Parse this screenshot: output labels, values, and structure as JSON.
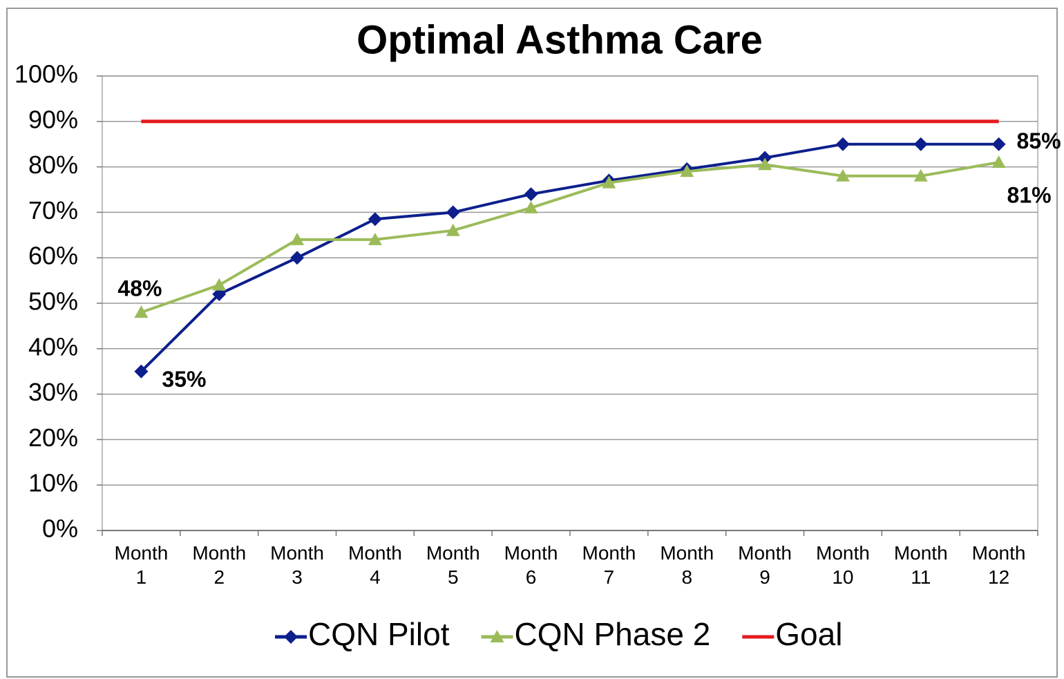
{
  "chart_data": {
    "type": "line",
    "title": "Optimal Asthma Care",
    "categories": [
      "Month 1",
      "Month 2",
      "Month 3",
      "Month 4",
      "Month 5",
      "Month 6",
      "Month 7",
      "Month 8",
      "Month 9",
      "Month 10",
      "Month 11",
      "Month 12"
    ],
    "series": [
      {
        "name": "CQN Pilot",
        "color": "#0d1f8c",
        "marker": "diamond",
        "values": [
          35,
          52,
          60,
          68.5,
          70,
          74,
          77,
          79.5,
          82,
          85,
          85,
          85
        ],
        "value_labels": [
          "35%",
          null,
          null,
          null,
          null,
          null,
          null,
          null,
          null,
          null,
          null,
          "85%"
        ]
      },
      {
        "name": "CQN Phase 2",
        "color": "#9bbb59",
        "marker": "triangle",
        "values": [
          48,
          54,
          64,
          64,
          66,
          71,
          76.5,
          79,
          80.5,
          78,
          78,
          81
        ],
        "value_labels": [
          "48%",
          null,
          null,
          null,
          null,
          null,
          null,
          null,
          null,
          null,
          null,
          "81%"
        ]
      },
      {
        "name": "Goal",
        "color": "#e41a1c",
        "marker": "none",
        "values": [
          90,
          90,
          90,
          90,
          90,
          90,
          90,
          90,
          90,
          90,
          90,
          90
        ]
      }
    ],
    "ylim": [
      0,
      100
    ],
    "yticks": [
      {
        "value": 0,
        "label": "0%"
      },
      {
        "value": 10,
        "label": "10%"
      },
      {
        "value": 20,
        "label": "20%"
      },
      {
        "value": 30,
        "label": "30%"
      },
      {
        "value": 40,
        "label": "40%"
      },
      {
        "value": 50,
        "label": "50%"
      },
      {
        "value": 60,
        "label": "60%"
      },
      {
        "value": 70,
        "label": "70%"
      },
      {
        "value": 80,
        "label": "80%"
      },
      {
        "value": 90,
        "label": "90%"
      },
      {
        "value": 100,
        "label": "100%"
      }
    ],
    "grid": true,
    "legend": "bottom"
  }
}
